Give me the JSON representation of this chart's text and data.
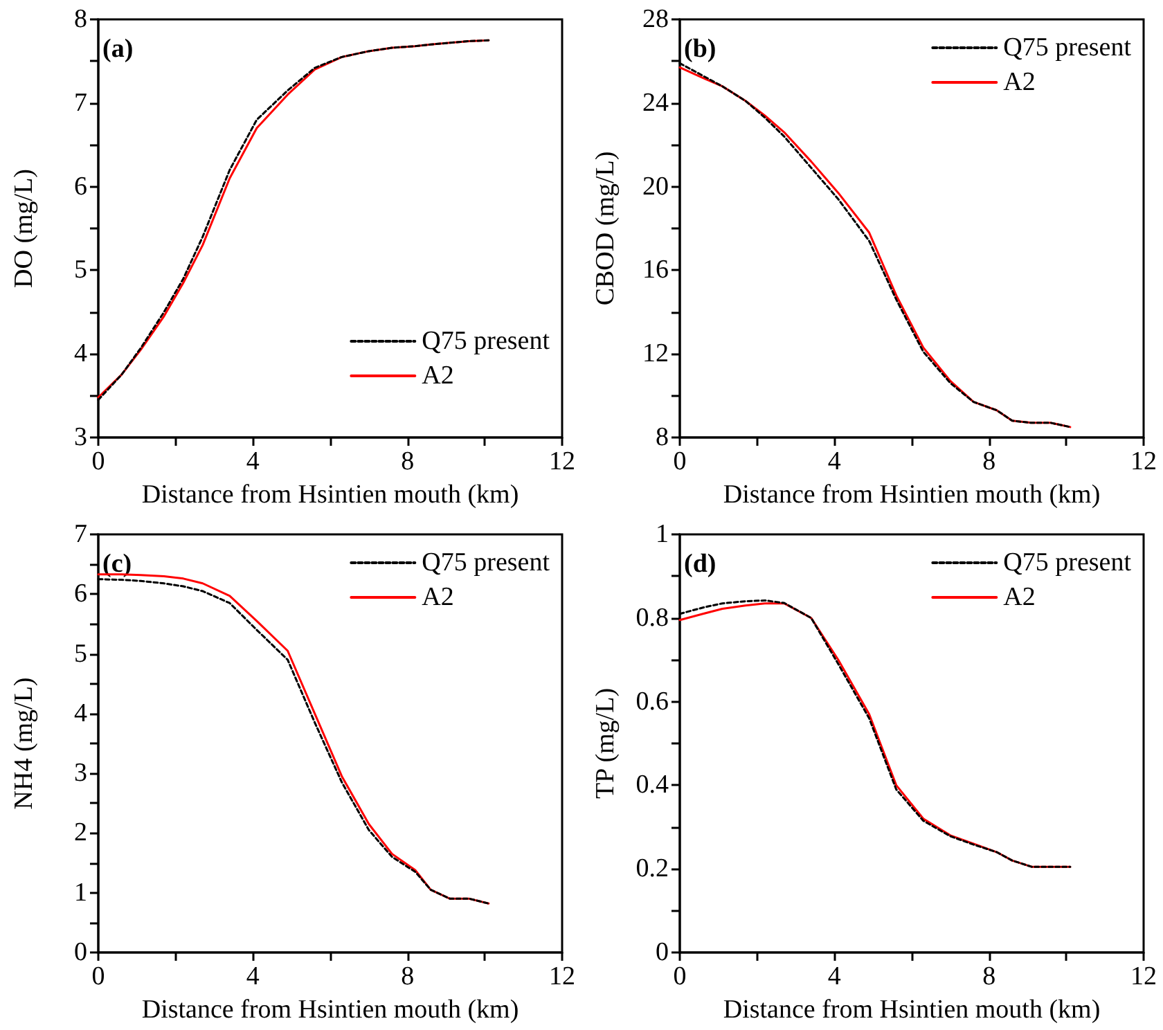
{
  "chart_data": [
    {
      "type": "line",
      "xlabel": "Distance from Hsintien mouth (km)",
      "ylabel": "DO (mg/L)",
      "annotations": [
        "(a)"
      ],
      "xlim": [
        0,
        12
      ],
      "xticks": [
        0,
        {
          "value": 2,
          "label": null
        },
        4,
        {
          "value": 6,
          "label": null
        },
        8,
        {
          "value": 10,
          "label": null
        },
        12
      ],
      "ylim": [
        3,
        8
      ],
      "yticks": [
        3,
        {
          "value": 3.5,
          "label": null
        },
        4,
        {
          "value": 4.5,
          "label": null
        },
        5,
        {
          "value": 5.5,
          "label": null
        },
        6,
        {
          "value": 6.5,
          "label": null
        },
        7,
        {
          "value": 7.5,
          "label": null
        },
        8
      ],
      "grid": false,
      "legend": "bottom right",
      "marker": "none",
      "x": [
        0,
        0.6,
        1.1,
        1.7,
        2.2,
        2.7,
        3.4,
        4.1,
        4.9,
        5.6,
        6.3,
        7.0,
        7.6,
        8.2,
        8.6,
        9.1,
        9.6,
        10.1
      ],
      "series": [
        {
          "name": "Q75 present",
          "color": "#000000",
          "line_style": "dashed",
          "values": [
            3.45,
            3.75,
            4.07,
            4.5,
            4.9,
            5.4,
            6.2,
            6.8,
            7.15,
            7.42,
            7.55,
            7.62,
            7.66,
            7.68,
            7.7,
            7.72,
            7.74,
            7.75
          ]
        },
        {
          "name": "A2",
          "color": "#ff0000",
          "line_style": "solid",
          "values": [
            3.48,
            3.75,
            4.05,
            4.45,
            4.85,
            5.3,
            6.1,
            6.7,
            7.1,
            7.4,
            7.55,
            7.62,
            7.66,
            7.68,
            7.7,
            7.72,
            7.74,
            7.75
          ]
        }
      ]
    },
    {
      "type": "line",
      "xlabel": "Distance from Hsintien mouth (km)",
      "ylabel": "CBOD (mg/L)",
      "annotations": [
        "(b)"
      ],
      "xlim": [
        0,
        12
      ],
      "xticks": [
        0,
        {
          "value": 2,
          "label": null
        },
        4,
        {
          "value": 6,
          "label": null
        },
        8,
        {
          "value": 10,
          "label": null
        },
        12
      ],
      "ylim": [
        8,
        28
      ],
      "yticks": [
        8,
        {
          "value": 10,
          "label": null
        },
        12,
        {
          "value": 14,
          "label": null
        },
        16,
        {
          "value": 18,
          "label": null
        },
        20,
        {
          "value": 22,
          "label": null
        },
        24,
        {
          "value": 26,
          "label": null
        },
        28
      ],
      "grid": false,
      "legend": "top right",
      "marker": "none",
      "x": [
        0,
        0.6,
        1.1,
        1.7,
        2.2,
        2.7,
        3.4,
        4.1,
        4.9,
        5.6,
        6.3,
        7.0,
        7.6,
        8.2,
        8.6,
        9.1,
        9.6,
        10.1
      ],
      "series": [
        {
          "name": "Q75 present",
          "color": "#000000",
          "line_style": "dashed",
          "values": [
            25.9,
            25.3,
            24.8,
            24.1,
            23.3,
            22.4,
            20.9,
            19.4,
            17.4,
            14.6,
            12.1,
            10.6,
            9.7,
            9.3,
            8.8,
            8.7,
            8.7,
            8.5
          ]
        },
        {
          "name": "A2",
          "color": "#ff0000",
          "line_style": "solid",
          "values": [
            25.7,
            25.2,
            24.8,
            24.1,
            23.4,
            22.6,
            21.2,
            19.7,
            17.8,
            14.8,
            12.3,
            10.7,
            9.7,
            9.3,
            8.8,
            8.7,
            8.7,
            8.5
          ]
        }
      ]
    },
    {
      "type": "line",
      "xlabel": "Distance from Hsintien mouth (km)",
      "ylabel": "NH4 (mg/L)",
      "annotations": [
        "(c)"
      ],
      "xlim": [
        0,
        12
      ],
      "xticks": [
        0,
        {
          "value": 2,
          "label": null
        },
        4,
        {
          "value": 6,
          "label": null
        },
        8,
        {
          "value": 10,
          "label": null
        },
        12
      ],
      "ylim": [
        0,
        7
      ],
      "yticks": [
        0,
        {
          "value": 0.5,
          "label": null
        },
        1,
        {
          "value": 1.5,
          "label": null
        },
        2,
        {
          "value": 2.5,
          "label": null
        },
        3,
        {
          "value": 3.5,
          "label": null
        },
        4,
        {
          "value": 4.5,
          "label": null
        },
        5,
        {
          "value": 5.5,
          "label": null
        },
        6,
        {
          "value": 6.5,
          "label": null
        },
        7
      ],
      "grid": false,
      "legend": "top right",
      "marker": "none",
      "x": [
        0,
        0.6,
        1.1,
        1.7,
        2.2,
        2.7,
        3.4,
        4.1,
        4.9,
        5.6,
        6.3,
        7.0,
        7.6,
        8.2,
        8.6,
        9.1,
        9.6,
        10.1
      ],
      "series": [
        {
          "name": "Q75 present",
          "color": "#000000",
          "line_style": "dashed",
          "values": [
            6.25,
            6.24,
            6.22,
            6.18,
            6.13,
            6.05,
            5.85,
            5.4,
            4.9,
            3.85,
            2.85,
            2.05,
            1.6,
            1.35,
            1.05,
            0.9,
            0.9,
            0.82
          ]
        },
        {
          "name": "A2",
          "color": "#ff0000",
          "line_style": "solid",
          "values": [
            6.33,
            6.33,
            6.32,
            6.3,
            6.26,
            6.18,
            5.97,
            5.55,
            5.05,
            4.0,
            2.95,
            2.15,
            1.65,
            1.38,
            1.05,
            0.9,
            0.9,
            0.82
          ]
        }
      ]
    },
    {
      "type": "line",
      "xlabel": "Distance from Hsintien mouth (km)",
      "ylabel": "TP (mg/L)",
      "annotations": [
        "(d)"
      ],
      "xlim": [
        0,
        12
      ],
      "xticks": [
        0,
        {
          "value": 2,
          "label": null
        },
        4,
        {
          "value": 6,
          "label": null
        },
        8,
        {
          "value": 10,
          "label": null
        },
        12
      ],
      "ylim": [
        0,
        1
      ],
      "yticks": [
        0,
        {
          "value": 0.1,
          "label": null
        },
        0.2,
        {
          "value": 0.3,
          "label": null
        },
        0.4,
        {
          "value": 0.5,
          "label": null
        },
        0.6,
        {
          "value": 0.7,
          "label": null
        },
        0.8,
        {
          "value": 0.9,
          "label": null
        },
        1
      ],
      "grid": false,
      "legend": "top right",
      "marker": "none",
      "x": [
        0,
        0.6,
        1.1,
        1.7,
        2.2,
        2.7,
        3.4,
        4.1,
        4.9,
        5.6,
        6.3,
        7.0,
        7.6,
        8.2,
        8.6,
        9.1,
        9.6,
        10.1
      ],
      "series": [
        {
          "name": "Q75 present",
          "color": "#000000",
          "line_style": "dashed",
          "values": [
            0.81,
            0.825,
            0.835,
            0.84,
            0.842,
            0.836,
            0.8,
            0.69,
            0.56,
            0.39,
            0.315,
            0.278,
            0.258,
            0.24,
            0.22,
            0.205,
            0.205,
            0.205
          ]
        },
        {
          "name": "A2",
          "color": "#ff0000",
          "line_style": "solid",
          "values": [
            0.795,
            0.81,
            0.822,
            0.83,
            0.835,
            0.835,
            0.8,
            0.7,
            0.57,
            0.4,
            0.32,
            0.28,
            0.26,
            0.24,
            0.22,
            0.205,
            0.205,
            0.205
          ]
        }
      ]
    }
  ]
}
